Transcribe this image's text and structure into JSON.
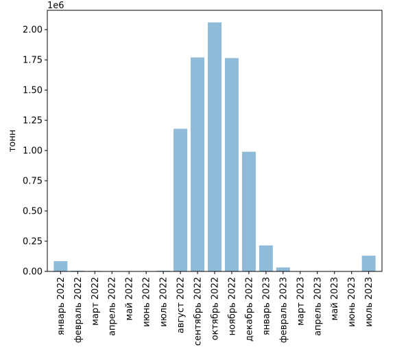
{
  "chart_data": {
    "type": "bar",
    "title": "",
    "xlabel": "",
    "ylabel": "тонн",
    "y_offset_label": "1e6",
    "ylim": [
      0,
      2.16
    ],
    "y_ticks": [
      0.0,
      0.25,
      0.5,
      0.75,
      1.0,
      1.25,
      1.5,
      1.75,
      2.0
    ],
    "y_tick_labels": [
      "0.00",
      "0.25",
      "0.50",
      "0.75",
      "1.00",
      "1.25",
      "1.50",
      "1.75",
      "2.00"
    ],
    "grid": false,
    "bar_color": "#8fbbd9",
    "categories": [
      "январь 2022",
      "февраль 2022",
      "март 2022",
      "апрель 2022",
      "май 2022",
      "июнь 2022",
      "июль 2022",
      "август 2022",
      "сентябрь 2022",
      "октябрь 2022",
      "ноябрь 2022",
      "декабрь 2022",
      "январь 2023",
      "февраль 2023",
      "март 2023",
      "апрель 2023",
      "май 2023",
      "июнь 2023",
      "июль 2023"
    ],
    "values": [
      0.085,
      0.006,
      0.004,
      0.001,
      0.001,
      0.001,
      0.006,
      1.18,
      1.77,
      2.06,
      1.765,
      0.99,
      0.215,
      0.033,
      0.001,
      0.001,
      0.001,
      0.001,
      0.13
    ]
  }
}
